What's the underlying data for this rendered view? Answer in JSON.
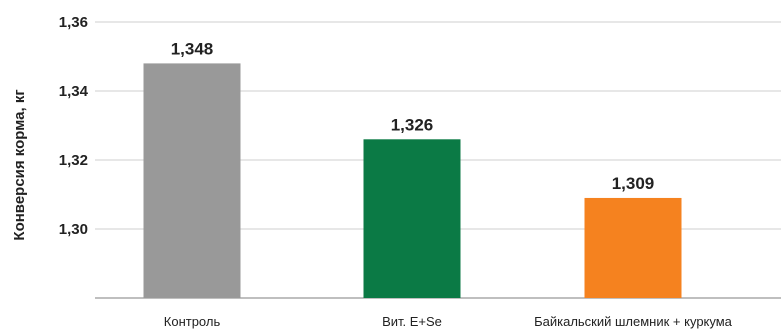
{
  "chart_data": {
    "type": "bar",
    "ylabel": "Конверсия корма, кг",
    "categories": [
      "Контроль",
      "Вит. E+Se",
      "Байкальский шлемник + куркума"
    ],
    "values": [
      1.348,
      1.326,
      1.309
    ],
    "value_labels": [
      "1,348",
      "1,326",
      "1,309"
    ],
    "colors": [
      "#999999",
      "#0b7a45",
      "#f5821f"
    ],
    "ylim": [
      1.28,
      1.36
    ],
    "yticks": [
      1.3,
      1.32,
      1.34,
      1.36
    ],
    "ytick_labels": [
      "1,30",
      "1,32",
      "1,34",
      "1,36"
    ],
    "grid": true,
    "legend": "none"
  }
}
